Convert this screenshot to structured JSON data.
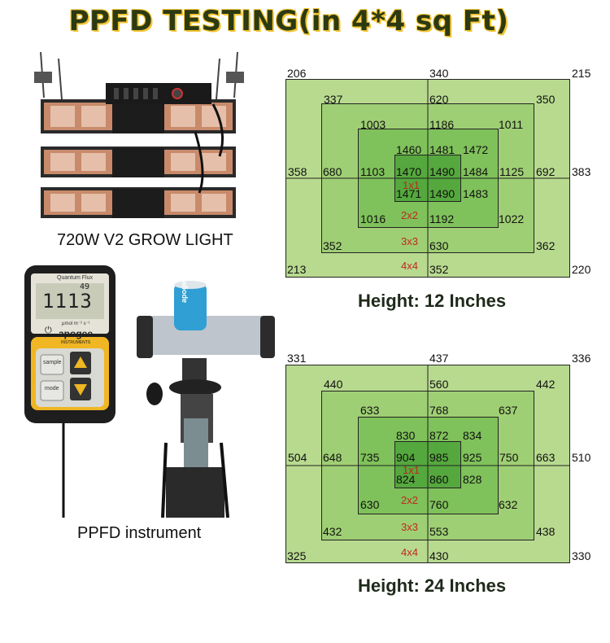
{
  "title": "PPFD TESTING(in 4*4 sq Ft)",
  "light_caption": "720W V2 GROW LIGHT",
  "instrument_caption": "PPFD instrument",
  "meter": {
    "model": "Quantum Flux",
    "brand": "apogee",
    "brand_sub": "INSTRUMENTS",
    "reading": "1113",
    "small_reading": "49",
    "unit_text": "μmol m⁻² s⁻¹",
    "sample_label": "sample",
    "mode_label": "mode"
  },
  "sensor_brand": "apogee",
  "grid12": {
    "caption": "Height: 12 Inches",
    "top": [
      "206",
      "340",
      "215"
    ],
    "r1": [
      "337",
      "620",
      "350"
    ],
    "r2": [
      "1003",
      "1186",
      "1011"
    ],
    "r3": [
      "1460",
      "1481",
      "1472"
    ],
    "mid": [
      "358",
      "680",
      "1103",
      "1470",
      "1490",
      "1484",
      "1125",
      "692",
      "383"
    ],
    "r5": [
      "1471",
      "1490",
      "1483"
    ],
    "r6": [
      "1016",
      "1192",
      "1022"
    ],
    "r7": [
      "352",
      "630",
      "362"
    ],
    "bot": [
      "213",
      "352",
      "220"
    ]
  },
  "grid24": {
    "caption": "Height: 24 Inches",
    "top": [
      "331",
      "437",
      "336"
    ],
    "r1": [
      "440",
      "560",
      "442"
    ],
    "r2": [
      "633",
      "768",
      "637"
    ],
    "r3": [
      "830",
      "872",
      "834"
    ],
    "mid": [
      "504",
      "648",
      "735",
      "904",
      "985",
      "925",
      "750",
      "663",
      "510"
    ],
    "r5": [
      "824",
      "860",
      "828"
    ],
    "r6": [
      "630",
      "760",
      "632"
    ],
    "r7": [
      "432",
      "553",
      "438"
    ],
    "bot": [
      "325",
      "430",
      "330"
    ]
  },
  "rings": [
    "1x1",
    "2x2",
    "3x3",
    "4x4"
  ],
  "colors": {
    "outer": "#b8da8f",
    "ring2": "#9fcf74",
    "ring3": "#7fc15a",
    "core": "#55a83d",
    "title_text": "#2c3a12",
    "title_outline": "#f4c431",
    "ring_label": "#c0281e"
  }
}
